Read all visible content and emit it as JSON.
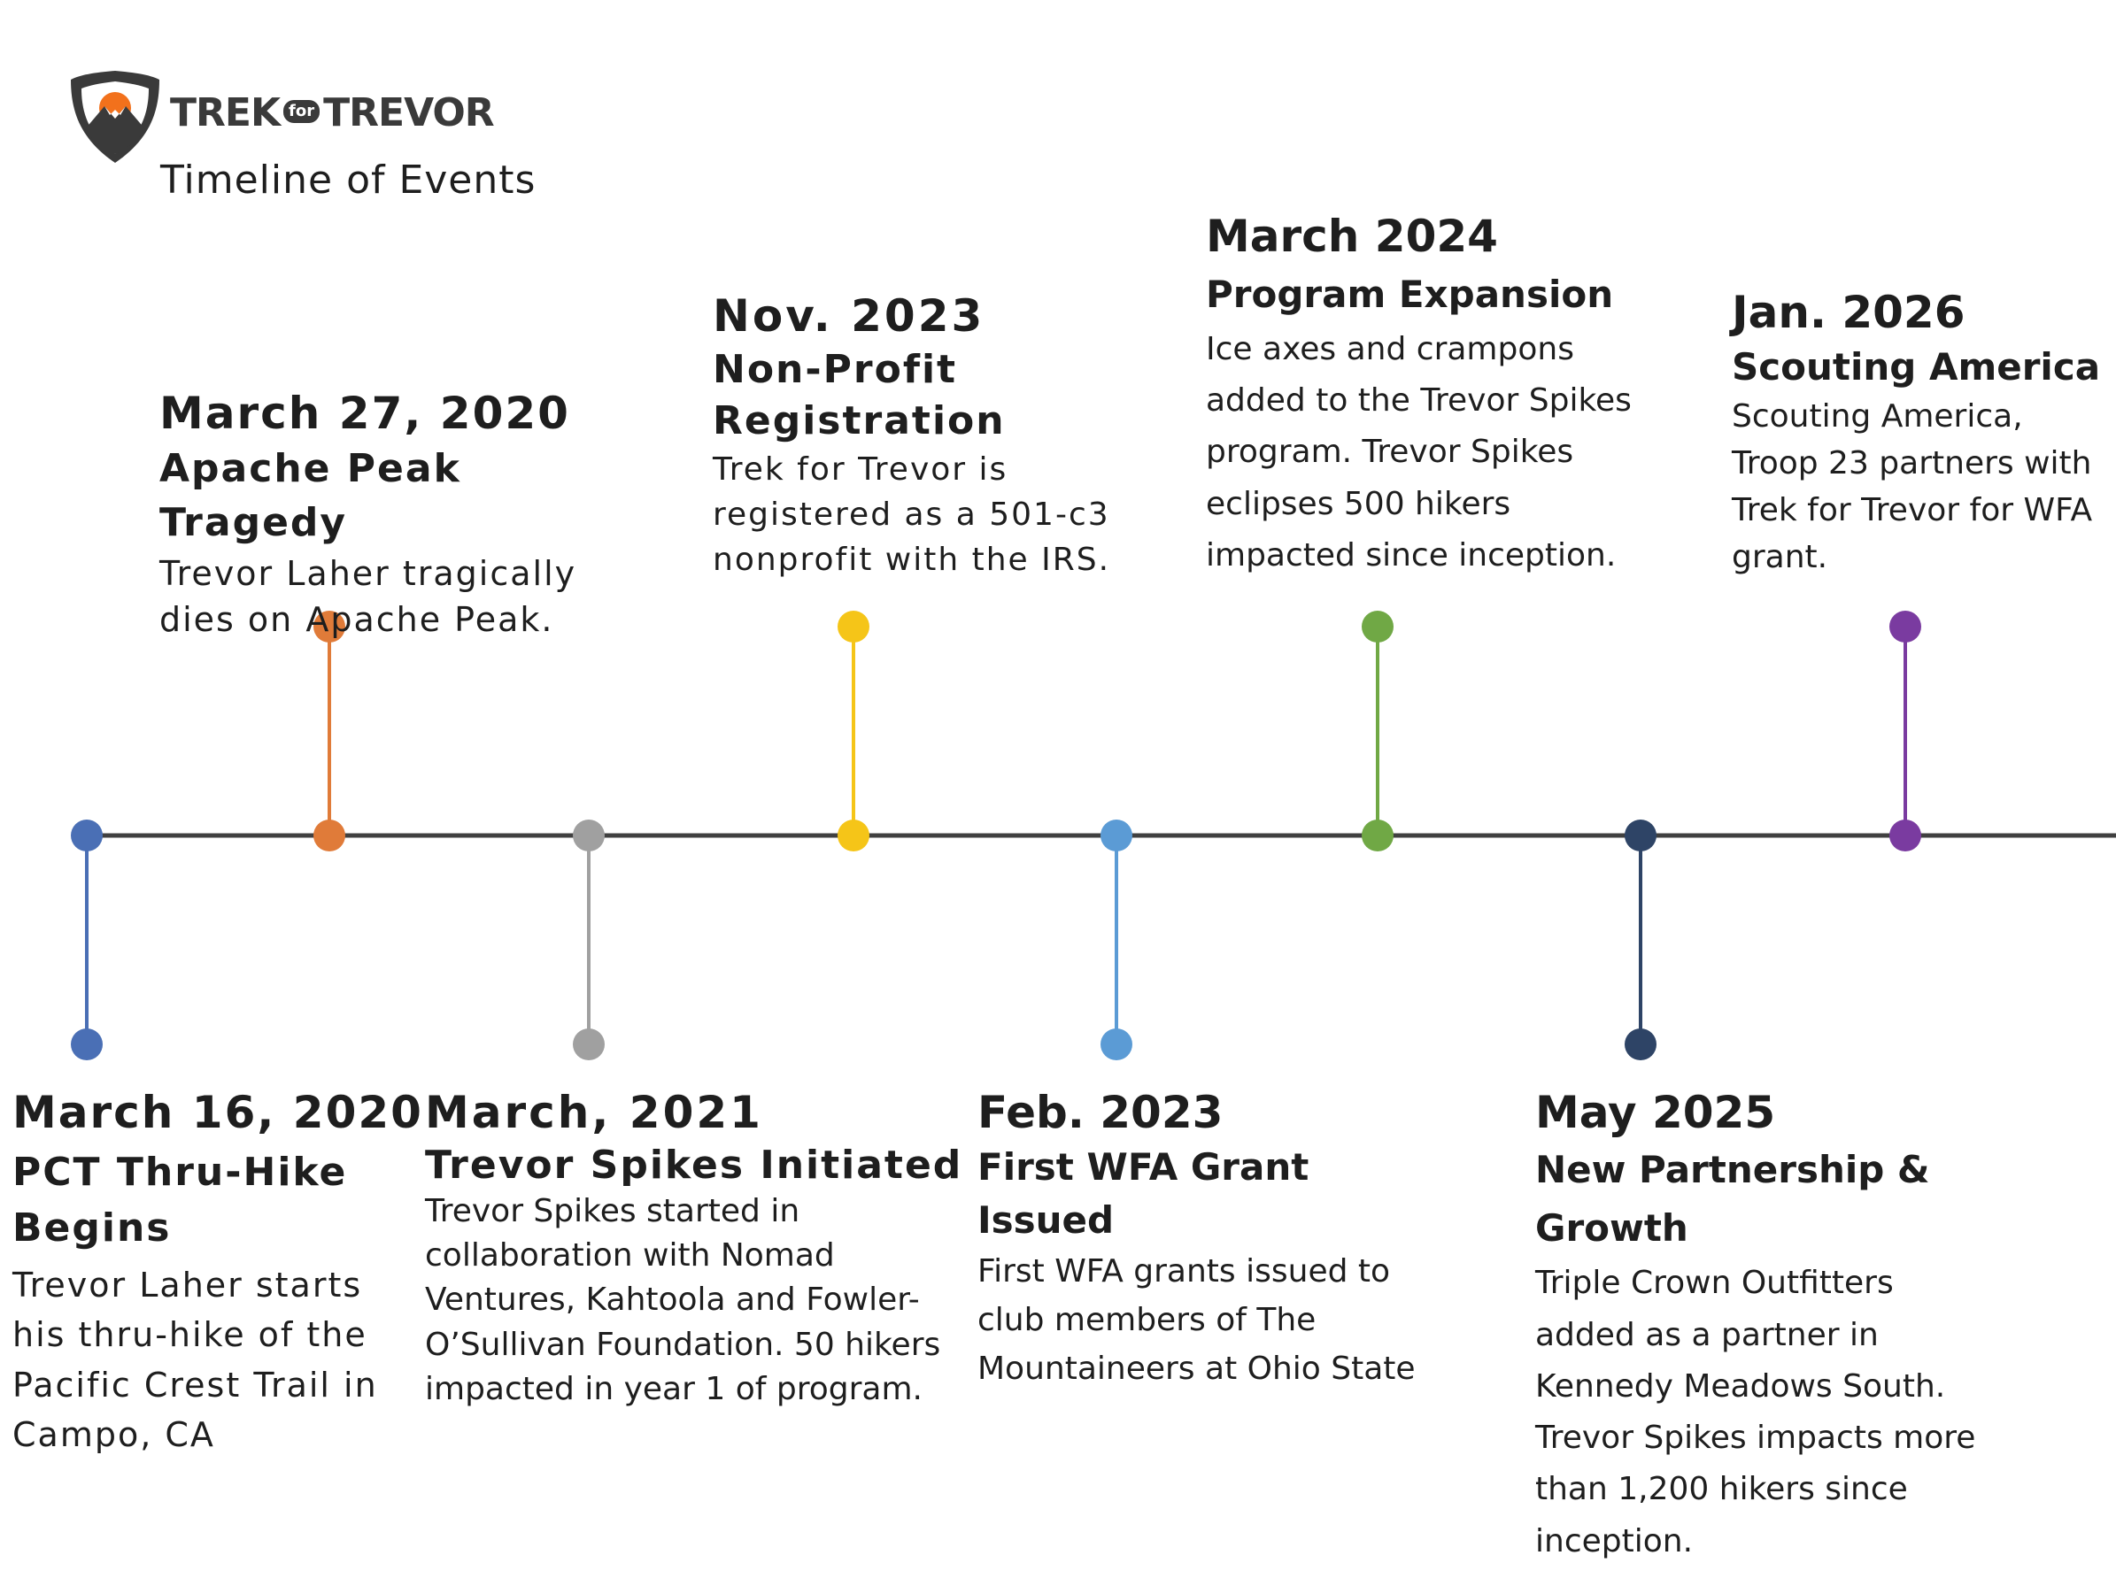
{
  "brand": {
    "logo_text_left": "TREK",
    "logo_text_mid": "for",
    "logo_text_right": "TREVOR",
    "subtitle": "Timeline of Events",
    "logo_colors": {
      "shield": "#3a3a3a",
      "sun": "#f2711c"
    }
  },
  "axis_color": "#404040",
  "events": [
    {
      "date": "March 16, 2020",
      "title": "PCT Thru-Hike Begins",
      "description": "Trevor Laher starts his thru-hike of the Pacific Crest Trail in Campo, CA",
      "color": "#4a6fb5",
      "side": "below"
    },
    {
      "date": "March 27, 2020",
      "title": "Apache Peak Tragedy",
      "description": "Trevor Laher tragically dies on Apache Peak.",
      "color": "#e07b39",
      "side": "above"
    },
    {
      "date": "March, 2021",
      "title": "Trevor Spikes Initiated",
      "description": "Trevor Spikes started in collaboration with Nomad Ventures, Kahtoola and Fowler-O’Sullivan Foundation.  50 hikers impacted in year 1 of program.",
      "color": "#a0a0a0",
      "side": "below"
    },
    {
      "date": "Nov. 2023",
      "title": "Non-Profit Registration",
      "description": "Trek for Trevor is registered as a 501-c3 nonprofit with the IRS.",
      "color": "#f5c518",
      "side": "above"
    },
    {
      "date": "Feb. 2023",
      "title": "First WFA Grant Issued",
      "description": "First WFA grants issued to club members of The Mountaineers at Ohio State",
      "color": "#5b9bd5",
      "side": "below"
    },
    {
      "date": "March 2024",
      "title": "Program Expansion",
      "description": "Ice axes and crampons added to the Trevor Spikes program. Trevor Spikes eclipses 500 hikers impacted since inception.",
      "color": "#70a845",
      "side": "above"
    },
    {
      "date": "May 2025",
      "title": "New Partnership & Growth",
      "description": "Triple Crown Outfitters added as a partner in Kennedy Meadows South. Trevor Spikes impacts more than 1,200 hikers since inception.",
      "color": "#2e4466",
      "side": "below"
    },
    {
      "date": "Jan. 2026",
      "title": "Scouting America",
      "description": "Scouting America, Troop 23 partners with Trek for Trevor for WFA grant.",
      "color": "#7a3ba0",
      "side": "above"
    }
  ]
}
